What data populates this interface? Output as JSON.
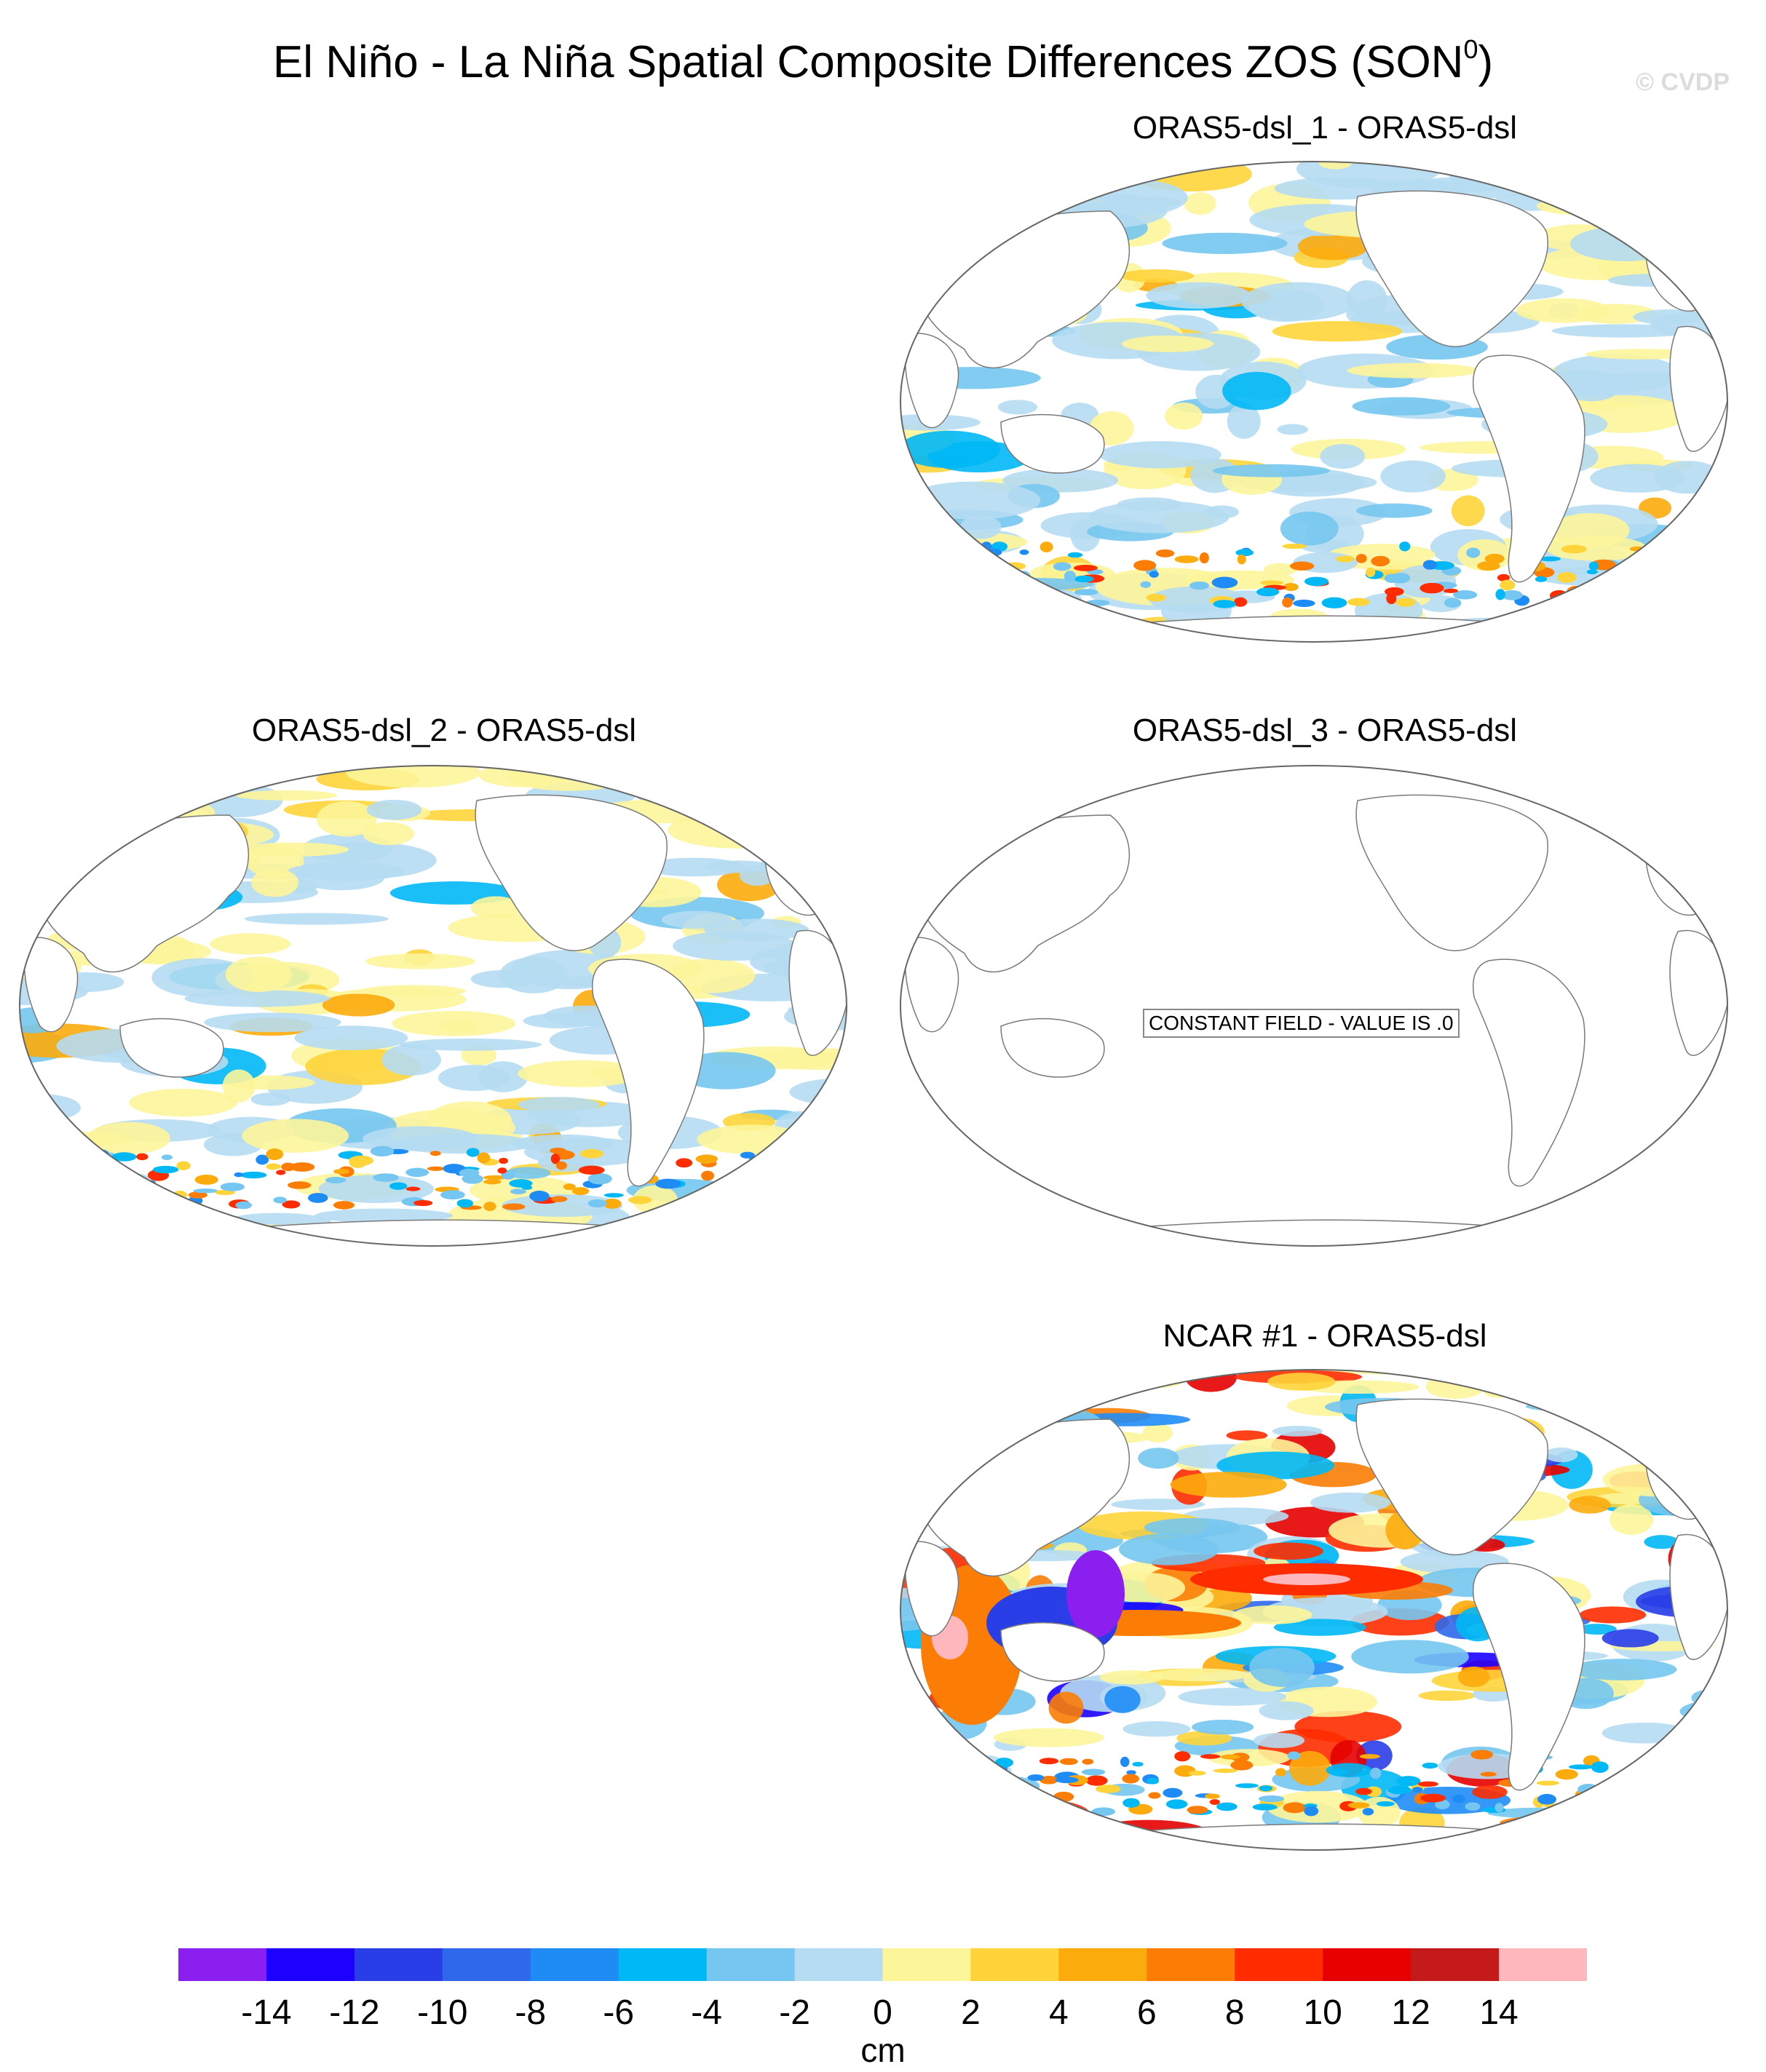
{
  "title": "El Niño - La Niña Spatial Composite Differences ZOS (SON",
  "title_sup": "0",
  "title_close": ")",
  "watermark": "© CVDP",
  "chart_data": {
    "type": "heatmap",
    "panels": [
      {
        "name": "ORAS5-dsl_1 - ORAS5-dsl",
        "constant": false,
        "pattern": "weak"
      },
      {
        "name": "ORAS5-dsl_2 - ORAS5-dsl",
        "constant": false,
        "pattern": "weak"
      },
      {
        "name": "ORAS5-dsl_3 - ORAS5-dsl",
        "constant": true,
        "constant_label": "CONSTANT FIELD - VALUE IS .0"
      },
      {
        "name": "NCAR #1 - ORAS5-dsl",
        "constant": false,
        "pattern": "strong"
      }
    ],
    "colorbar": {
      "units": "cm",
      "levels": [
        -14,
        -12,
        -10,
        -8,
        -6,
        -4,
        -2,
        0,
        2,
        4,
        6,
        8,
        10,
        12,
        14
      ],
      "colors": [
        "#8a1fef",
        "#1d00ff",
        "#2a3ee8",
        "#2f68ea",
        "#1f8cf6",
        "#00b8f5",
        "#75c6f0",
        "#b5dcf2",
        "#fdf59a",
        "#fed43a",
        "#fcab0c",
        "#fb7d05",
        "#ff2c00",
        "#e60000",
        "#c41a1a",
        "#fdb7bd"
      ]
    }
  }
}
